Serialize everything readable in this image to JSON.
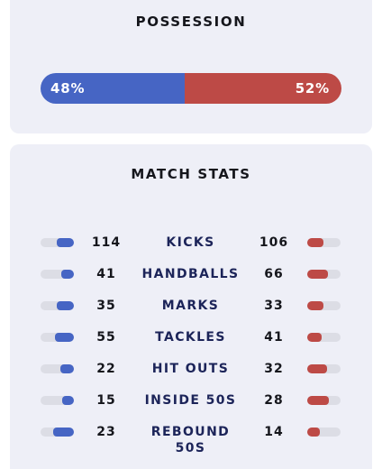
{
  "possession": {
    "title": "POSSESSION",
    "home_pct": 48,
    "away_pct": 52,
    "home_label": "48%",
    "away_label": "52%"
  },
  "match_stats": {
    "title": "MATCH STATS",
    "rows": [
      {
        "label": "KICKS",
        "home": "114",
        "away": "106",
        "home_fill": 0.52,
        "away_fill": 0.48
      },
      {
        "label": "HANDBALLS",
        "home": "41",
        "away": "66",
        "home_fill": 0.38,
        "away_fill": 0.62
      },
      {
        "label": "MARKS",
        "home": "35",
        "away": "33",
        "home_fill": 0.51,
        "away_fill": 0.49
      },
      {
        "label": "TACKLES",
        "home": "55",
        "away": "41",
        "home_fill": 0.57,
        "away_fill": 0.43
      },
      {
        "label": "HIT OUTS",
        "home": "22",
        "away": "32",
        "home_fill": 0.41,
        "away_fill": 0.59
      },
      {
        "label": "INSIDE 50S",
        "home": "15",
        "away": "28",
        "home_fill": 0.35,
        "away_fill": 0.65
      },
      {
        "label": "REBOUND 50S",
        "home": "23",
        "away": "14",
        "home_fill": 0.62,
        "away_fill": 0.38
      }
    ]
  },
  "colors": {
    "home": "#4665c4",
    "away": "#bd4a46",
    "card_bg": "#eeeff7",
    "label_navy": "#1c2459"
  }
}
